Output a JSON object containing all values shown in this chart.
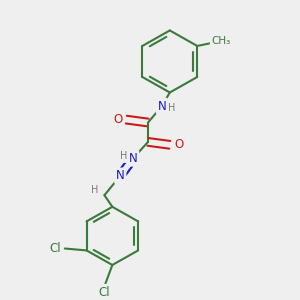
{
  "background_color": "#efefef",
  "bond_color": "#3a7a3a",
  "bond_width": 1.5,
  "dbo": 0.012,
  "atom_colors": {
    "C": "#3a7a3a",
    "N": "#1a1acc",
    "O": "#cc1a1a",
    "H": "#7a7a7a",
    "Cl": "#3a7a3a"
  },
  "fs": 8.5,
  "fs_s": 7.0
}
